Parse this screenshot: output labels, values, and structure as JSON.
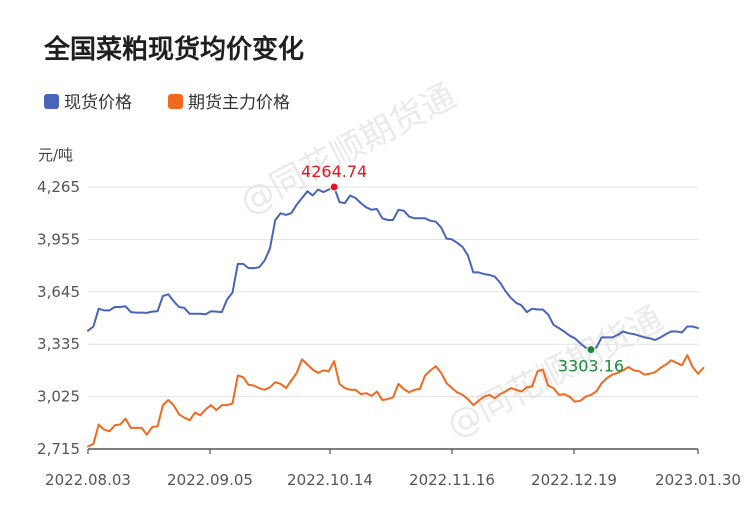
{
  "chart_data": {
    "type": "line",
    "title": "全国菜粕现货均价变化",
    "ylabel": "元/吨",
    "xlabel": "",
    "ylim": [
      2715,
      4265
    ],
    "y_ticks": [
      "4,265",
      "3,955",
      "3,645",
      "3,335",
      "3,025",
      "2,715"
    ],
    "x_ticks": [
      "2022.08.03",
      "2022.09.05",
      "2022.10.14",
      "2022.11.16",
      "2022.12.19",
      "2023.01.30"
    ],
    "legend_position": "top-left",
    "grid": true,
    "watermark": "@同花顺期货通",
    "series": [
      {
        "name": "现货价格",
        "color": "#4a63bb",
        "values": [
          3415,
          3440,
          3545,
          3535,
          3535,
          3555,
          3555,
          3560,
          3525,
          3522,
          3522,
          3520,
          3528,
          3530,
          3620,
          3630,
          3590,
          3555,
          3550,
          3515,
          3515,
          3515,
          3512,
          3530,
          3528,
          3525,
          3600,
          3640,
          3810,
          3810,
          3785,
          3785,
          3790,
          3830,
          3900,
          4070,
          4110,
          4100,
          4110,
          4160,
          4200,
          4240,
          4215,
          4250,
          4235,
          4250,
          4265,
          4175,
          4170,
          4215,
          4200,
          4170,
          4145,
          4130,
          4135,
          4080,
          4070,
          4070,
          4130,
          4125,
          4090,
          4080,
          4080,
          4080,
          4065,
          4060,
          4025,
          3960,
          3955,
          3935,
          3910,
          3860,
          3760,
          3760,
          3750,
          3745,
          3735,
          3700,
          3650,
          3610,
          3580,
          3565,
          3525,
          3545,
          3540,
          3540,
          3510,
          3450,
          3430,
          3410,
          3385,
          3370,
          3340,
          3315,
          3303,
          3315,
          3375,
          3375,
          3375,
          3390,
          3410,
          3400,
          3395,
          3385,
          3375,
          3370,
          3360,
          3375,
          3395,
          3410,
          3410,
          3405,
          3440,
          3440,
          3430
        ]
      },
      {
        "name": "期货主力价格",
        "color": "#f06a22",
        "values": [
          2730,
          2745,
          2860,
          2830,
          2820,
          2855,
          2860,
          2895,
          2840,
          2840,
          2840,
          2800,
          2845,
          2850,
          2975,
          3005,
          2975,
          2920,
          2900,
          2885,
          2930,
          2915,
          2950,
          2975,
          2945,
          2975,
          2975,
          2985,
          3150,
          3140,
          3095,
          3090,
          3075,
          3065,
          3080,
          3110,
          3100,
          3075,
          3120,
          3165,
          3245,
          3215,
          3185,
          3165,
          3180,
          3175,
          3235,
          3100,
          3075,
          3065,
          3065,
          3040,
          3045,
          3030,
          3055,
          3005,
          3010,
          3020,
          3100,
          3070,
          3050,
          3065,
          3070,
          3150,
          3180,
          3205,
          3165,
          3105,
          3075,
          3050,
          3035,
          3010,
          2975,
          3000,
          3025,
          3035,
          3015,
          3040,
          3055,
          3075,
          3065,
          3055,
          3080,
          3085,
          3175,
          3185,
          3090,
          3075,
          3035,
          3040,
          3025,
          2995,
          3000,
          3025,
          3035,
          3055,
          3105,
          3135,
          3155,
          3165,
          3180,
          3200,
          3180,
          3175,
          3155,
          3160,
          3170,
          3195,
          3215,
          3240,
          3225,
          3210,
          3270,
          3200,
          3160,
          3195
        ]
      }
    ],
    "annotations": [
      {
        "label": "4264.74",
        "series": 0,
        "index": 46,
        "color": "#e8131e",
        "dot": "#e8131e",
        "side": "above"
      },
      {
        "label": "3303.16",
        "series": 0,
        "index": 94,
        "color": "#1c8a3a",
        "dot": "#1c8a3a",
        "side": "below"
      }
    ]
  }
}
